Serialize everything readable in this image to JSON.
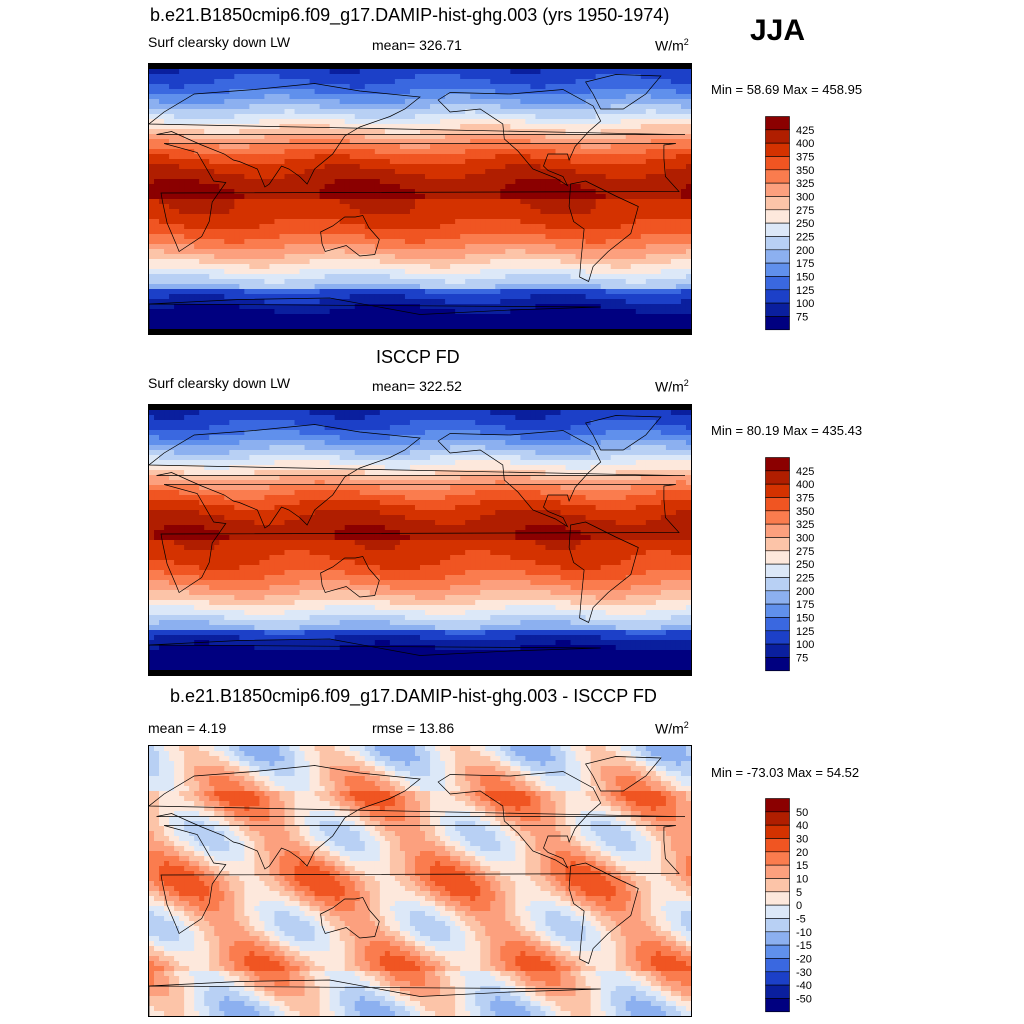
{
  "season": "JJA",
  "panels": [
    {
      "title": "b.e21.B1850cmip6.f09_g17.DAMIP-hist-ghg.003 (yrs 1950-1974)",
      "left_label": "Surf clearsky down LW",
      "center_label": "mean= 326.71",
      "units_base": "W/m",
      "units_exp": "2",
      "minmax": "Min =  58.69 Max = 458.95"
    },
    {
      "title": "ISCCP FD",
      "left_label": "Surf clearsky down LW",
      "center_label": "mean= 322.52",
      "units_base": "W/m",
      "units_exp": "2",
      "minmax": "Min =  80.19 Max = 435.43"
    },
    {
      "title": "b.e21.B1850cmip6.f09_g17.DAMIP-hist-ghg.003 - ISCCP FD",
      "left_label": "mean =   4.19",
      "center_label": "rmse =  13.86",
      "units_base": "W/m",
      "units_exp": "2",
      "minmax": "Min = -73.03 Max =  54.52"
    }
  ],
  "chart_data": [
    {
      "type": "heatmap",
      "variable": "Surf clearsky down LW",
      "map": "global lat-lon, coastlines",
      "colorbar": {
        "levels": [
          "425",
          "400",
          "375",
          "350",
          "325",
          "300",
          "275",
          "250",
          "225",
          "200",
          "175",
          "150",
          "125",
          "100",
          "75"
        ],
        "colors": [
          "#8b0000",
          "#b01e00",
          "#d43200",
          "#f05522",
          "#fa7c4e",
          "#fca07e",
          "#fcc4a8",
          "#fde8dc",
          "#dce8f8",
          "#b8d0f4",
          "#8cb0f0",
          "#6090ec",
          "#3a68e0",
          "#1c40c8",
          "#0a1f9e",
          "#000080"
        ]
      }
    },
    {
      "type": "heatmap",
      "variable": "Surf clearsky down LW",
      "map": "global lat-lon, coastlines",
      "colorbar": {
        "levels": [
          "425",
          "400",
          "375",
          "350",
          "325",
          "300",
          "275",
          "250",
          "225",
          "200",
          "175",
          "150",
          "125",
          "100",
          "75"
        ],
        "colors": [
          "#8b0000",
          "#b01e00",
          "#d43200",
          "#f05522",
          "#fa7c4e",
          "#fca07e",
          "#fcc4a8",
          "#fde8dc",
          "#dce8f8",
          "#b8d0f4",
          "#8cb0f0",
          "#6090ec",
          "#3a68e0",
          "#1c40c8",
          "#0a1f9e",
          "#000080"
        ]
      }
    },
    {
      "type": "heatmap",
      "variable": "difference",
      "map": "global lat-lon, coastlines",
      "colorbar": {
        "levels": [
          "50",
          "40",
          "30",
          "20",
          "15",
          "10",
          "5",
          "0",
          "-5",
          "-10",
          "-15",
          "-20",
          "-30",
          "-40",
          "-50"
        ],
        "colors": [
          "#8b0000",
          "#b01e00",
          "#d43200",
          "#f05522",
          "#fa7c4e",
          "#fca07e",
          "#fcc4a8",
          "#fde8dc",
          "#dce8f8",
          "#b8d0f4",
          "#8cb0f0",
          "#6090ec",
          "#3a68e0",
          "#1c40c8",
          "#0a1f9e",
          "#000080"
        ]
      }
    }
  ]
}
